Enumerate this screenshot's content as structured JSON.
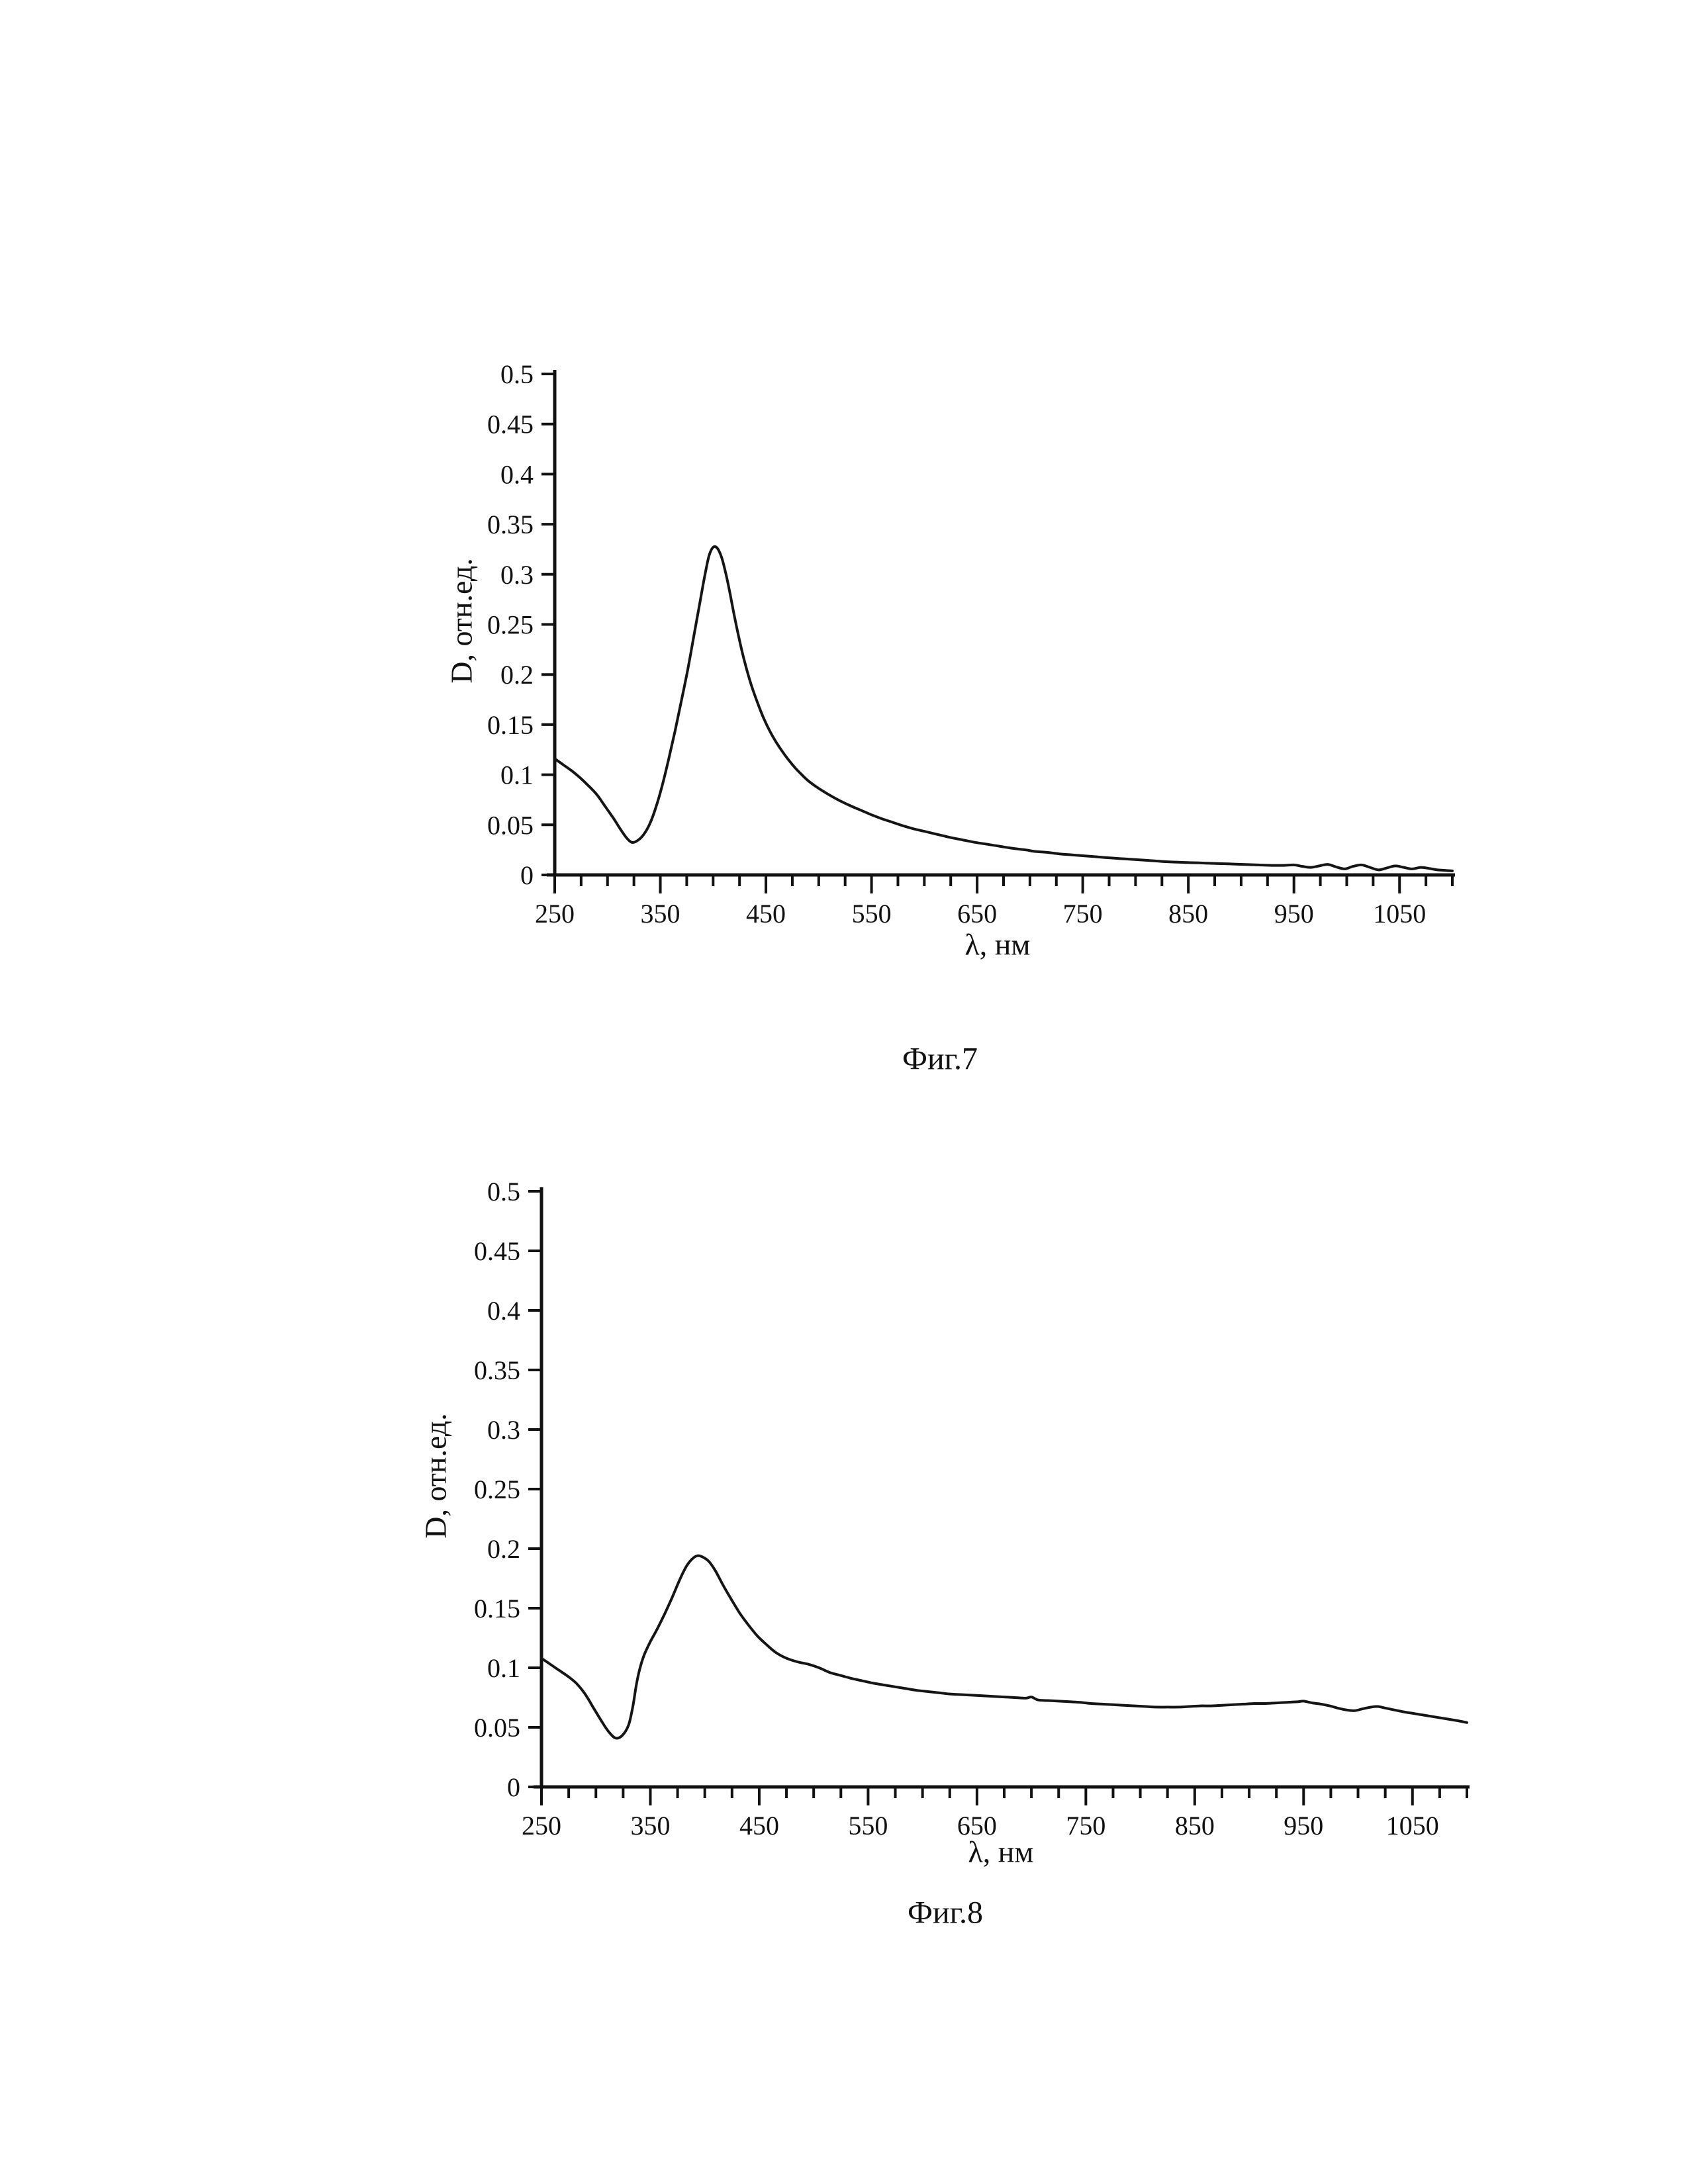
{
  "page": {
    "background": "#ffffff",
    "ink_color": "#111111"
  },
  "figures": [
    {
      "caption": "Фиг.7"
    },
    {
      "caption": "Фиг.8"
    }
  ],
  "chart_data": [
    {
      "type": "line",
      "title": "",
      "xlabel": "λ, нм",
      "ylabel": "D, отн.ед.",
      "xlim": [
        250,
        1100
      ],
      "ylim": [
        0,
        0.5
      ],
      "grid": false,
      "legend": null,
      "x_tick_values": [
        250,
        350,
        450,
        550,
        650,
        750,
        850,
        950,
        1050
      ],
      "x_tick_labels": [
        "250",
        "350",
        "450",
        "550",
        "650",
        "750",
        "850",
        "950",
        "1050"
      ],
      "x_minor_tick_step": 25,
      "y_tick_values": [
        0,
        0.05,
        0.1,
        0.15,
        0.2,
        0.25,
        0.3,
        0.35,
        0.4,
        0.45,
        0.5
      ],
      "y_tick_labels": [
        "0",
        "0.05",
        "0.1",
        "0.15",
        "0.2",
        "0.25",
        "0.3",
        "0.35",
        "0.4",
        "0.45",
        "0.5"
      ],
      "series": [
        {
          "name": "absorption-spectrum-fig7",
          "color": "#151515",
          "peak": {
            "x": 400,
            "y": 0.327
          },
          "x": [
            250,
            258,
            266,
            274,
            282,
            290,
            298,
            306,
            312,
            318,
            323,
            328,
            334,
            340,
            346,
            352,
            358,
            364,
            370,
            376,
            382,
            388,
            392,
            396,
            400,
            404,
            408,
            412,
            416,
            420,
            425,
            430,
            436,
            442,
            448,
            454,
            460,
            466,
            472,
            478,
            484,
            490,
            497,
            505,
            513,
            521,
            530,
            540,
            550,
            560,
            570,
            580,
            590,
            600,
            612,
            624,
            636,
            648,
            660,
            672,
            684,
            696,
            704,
            716,
            728,
            740,
            752,
            764,
            776,
            790,
            804,
            818,
            832,
            846,
            860,
            874,
            888,
            902,
            916,
            930,
            940,
            950,
            958,
            966,
            974,
            982,
            990,
            998,
            1006,
            1014,
            1022,
            1030,
            1038,
            1046,
            1054,
            1062,
            1070,
            1078,
            1086,
            1094,
            1100
          ],
          "y": [
            0.116,
            0.11,
            0.104,
            0.097,
            0.089,
            0.08,
            0.068,
            0.056,
            0.046,
            0.037,
            0.0325,
            0.034,
            0.04,
            0.051,
            0.068,
            0.09,
            0.116,
            0.144,
            0.174,
            0.205,
            0.24,
            0.275,
            0.298,
            0.318,
            0.327,
            0.326,
            0.317,
            0.301,
            0.281,
            0.259,
            0.234,
            0.212,
            0.19,
            0.172,
            0.156,
            0.143,
            0.132,
            0.1225,
            0.114,
            0.1065,
            0.1,
            0.094,
            0.0885,
            0.083,
            0.078,
            0.0735,
            0.069,
            0.0645,
            0.06,
            0.056,
            0.0525,
            0.049,
            0.046,
            0.0435,
            0.0405,
            0.0375,
            0.035,
            0.0325,
            0.0305,
            0.0285,
            0.0265,
            0.025,
            0.0235,
            0.0225,
            0.021,
            0.02,
            0.019,
            0.018,
            0.017,
            0.016,
            0.015,
            0.014,
            0.013,
            0.0125,
            0.012,
            0.0115,
            0.011,
            0.0105,
            0.01,
            0.0095,
            0.0095,
            0.01,
            0.0085,
            0.0075,
            0.009,
            0.0105,
            0.008,
            0.006,
            0.0085,
            0.01,
            0.0075,
            0.005,
            0.007,
            0.009,
            0.0075,
            0.006,
            0.0075,
            0.0065,
            0.005,
            0.0045,
            0.004
          ]
        }
      ]
    },
    {
      "type": "line",
      "title": "",
      "xlabel": "λ, нм",
      "ylabel": "D, отн.ед.",
      "xlim": [
        250,
        1100
      ],
      "ylim": [
        0,
        0.5
      ],
      "grid": false,
      "legend": null,
      "x_tick_values": [
        250,
        350,
        450,
        550,
        650,
        750,
        850,
        950,
        1050
      ],
      "x_tick_labels": [
        "250",
        "350",
        "450",
        "550",
        "650",
        "750",
        "850",
        "950",
        "1050"
      ],
      "x_minor_tick_step": 25,
      "y_tick_values": [
        0,
        0.05,
        0.1,
        0.15,
        0.2,
        0.25,
        0.3,
        0.35,
        0.4,
        0.45,
        0.5
      ],
      "y_tick_labels": [
        "0",
        "0.05",
        "0.1",
        "0.15",
        "0.2",
        "0.25",
        "0.3",
        "0.35",
        "0.4",
        "0.45",
        "0.5"
      ],
      "series": [
        {
          "name": "absorption-spectrum-fig8",
          "color": "#151515",
          "peak": {
            "x": 393,
            "y": 0.194
          },
          "x": [
            250,
            258,
            266,
            274,
            282,
            290,
            298,
            306,
            312,
            318,
            324,
            330,
            334,
            337,
            340,
            344,
            350,
            356,
            363,
            370,
            377,
            383,
            388,
            393,
            398,
            404,
            410,
            417,
            424,
            432,
            440,
            448,
            456,
            465,
            475,
            485,
            495,
            505,
            515,
            525,
            535,
            545,
            555,
            565,
            575,
            585,
            595,
            605,
            615,
            625,
            635,
            645,
            655,
            665,
            675,
            685,
            695,
            700,
            706,
            715,
            725,
            735,
            745,
            755,
            765,
            775,
            785,
            795,
            805,
            815,
            825,
            835,
            845,
            855,
            865,
            875,
            885,
            895,
            905,
            915,
            925,
            935,
            945,
            950,
            958,
            966,
            974,
            982,
            990,
            997,
            1004,
            1012,
            1018,
            1026,
            1034,
            1042,
            1052,
            1062,
            1072,
            1082,
            1092,
            1100
          ],
          "y": [
            0.108,
            0.103,
            0.098,
            0.093,
            0.087,
            0.078,
            0.066,
            0.054,
            0.046,
            0.041,
            0.043,
            0.052,
            0.068,
            0.085,
            0.098,
            0.11,
            0.122,
            0.132,
            0.145,
            0.159,
            0.174,
            0.185,
            0.191,
            0.194,
            0.193,
            0.189,
            0.181,
            0.169,
            0.158,
            0.146,
            0.136,
            0.127,
            0.12,
            0.113,
            0.108,
            0.105,
            0.103,
            0.1,
            0.096,
            0.0935,
            0.091,
            0.089,
            0.087,
            0.0855,
            0.084,
            0.0825,
            0.081,
            0.08,
            0.079,
            0.078,
            0.0775,
            0.077,
            0.0765,
            0.076,
            0.0755,
            0.075,
            0.0745,
            0.0755,
            0.073,
            0.0725,
            0.072,
            0.0715,
            0.071,
            0.07,
            0.0695,
            0.069,
            0.0685,
            0.068,
            0.0675,
            0.067,
            0.067,
            0.067,
            0.0675,
            0.068,
            0.068,
            0.0685,
            0.069,
            0.0695,
            0.07,
            0.07,
            0.0705,
            0.071,
            0.0715,
            0.072,
            0.0705,
            0.0695,
            0.068,
            0.066,
            0.0645,
            0.064,
            0.0655,
            0.067,
            0.0675,
            0.066,
            0.0645,
            0.063,
            0.0615,
            0.06,
            0.0585,
            0.057,
            0.0555,
            0.054
          ]
        }
      ]
    }
  ]
}
